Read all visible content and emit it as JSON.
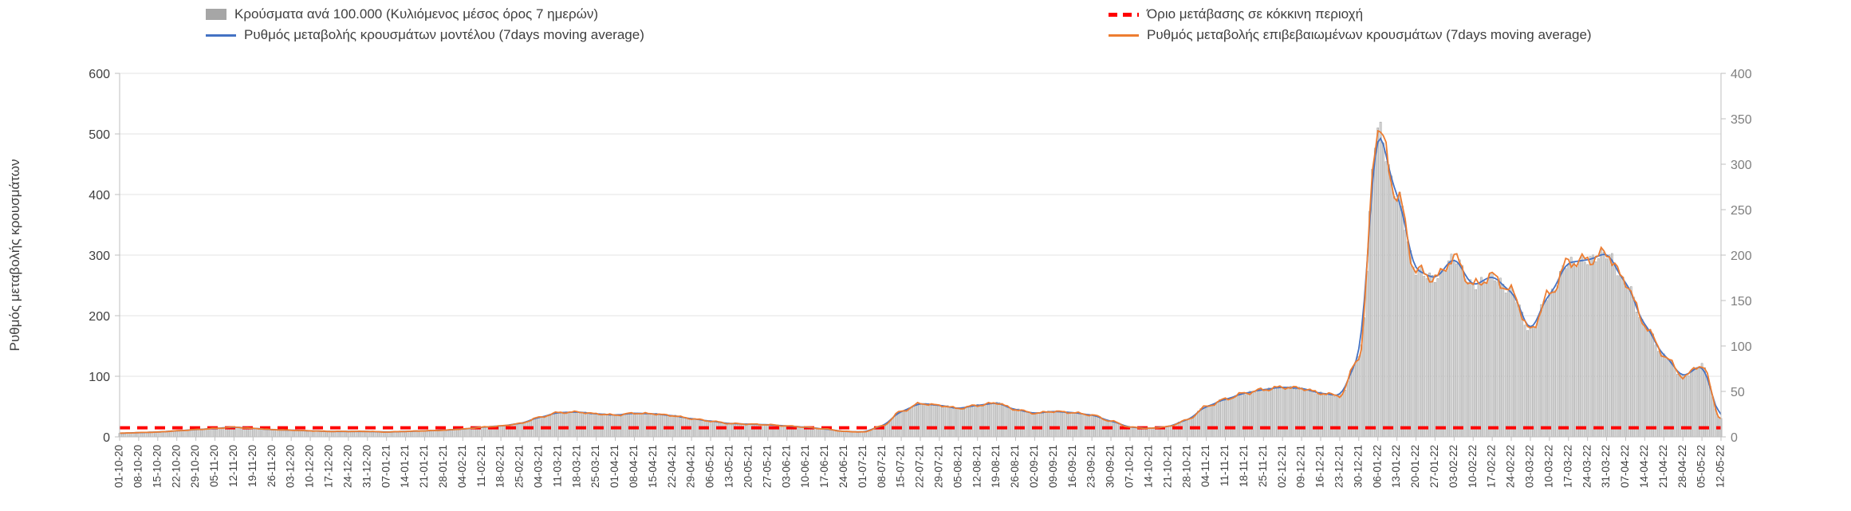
{
  "chart_data": {
    "type": "bar+line",
    "title": "",
    "x_resolution": "daily bars with weekly tick labels",
    "legend": {
      "position": "top",
      "items": [
        {
          "label": "Κρούσματα ανά 100.000 (Κυλιόμενος μέσος όρος 7 ημερών)",
          "swatch": "gray-bars"
        },
        {
          "label": "Όριο μετάβασης σε κόκκινη περιοχή",
          "swatch": "red-dashed-line"
        },
        {
          "label": "Ρυθμός μεταβολής κρουσμάτων μοντέλου (7days moving average)",
          "swatch": "blue-line"
        },
        {
          "label": "Ρυθμός μεταβολής επιβεβαιωμένων κρουσμάτων (7days moving average)",
          "swatch": "orange-line"
        }
      ]
    },
    "y_axis_left": {
      "title": "Ρυθμός μεταβολής κρουσμάτων",
      "min": 0,
      "max": 600,
      "step": 100
    },
    "y_axis_right": {
      "title": "",
      "min": 0,
      "max": 400,
      "step": 50
    },
    "grid": "horizontal-faint",
    "x_weekly_labels": [
      "01-10-20",
      "08-10-20",
      "15-10-20",
      "22-10-20",
      "29-10-20",
      "05-11-20",
      "12-11-20",
      "19-11-20",
      "26-11-20",
      "03-12-20",
      "10-12-20",
      "17-12-20",
      "24-12-20",
      "31-12-20",
      "07-01-21",
      "14-01-21",
      "21-01-21",
      "28-01-21",
      "04-02-21",
      "11-02-21",
      "18-02-21",
      "25-02-21",
      "04-03-21",
      "11-03-21",
      "18-03-21",
      "25-03-21",
      "01-04-21",
      "08-04-21",
      "15-04-21",
      "22-04-21",
      "29-04-21",
      "06-05-21",
      "13-05-21",
      "20-05-21",
      "27-05-21",
      "03-06-21",
      "10-06-21",
      "17-06-21",
      "24-06-21",
      "01-07-21",
      "08-07-21",
      "15-07-21",
      "22-07-21",
      "29-07-21",
      "05-08-21",
      "12-08-21",
      "19-08-21",
      "26-08-21",
      "02-09-21",
      "09-09-21",
      "16-09-21",
      "23-09-21",
      "30-09-21",
      "07-10-21",
      "14-10-21",
      "21-10-21",
      "28-10-21",
      "04-11-21",
      "11-11-21",
      "18-11-21",
      "25-11-21",
      "02-12-21",
      "09-12-21",
      "16-12-21",
      "23-12-21",
      "30-12-21",
      "06-01-22",
      "13-01-22",
      "20-01-22",
      "27-01-22",
      "03-02-22",
      "10-02-22",
      "17-02-22",
      "24-02-22",
      "03-03-22",
      "10-03-22",
      "17-03-22",
      "24-03-22",
      "31-03-22",
      "07-04-22",
      "14-04-22",
      "21-04-22",
      "28-04-22",
      "05-05-22",
      "12-05-22"
    ],
    "series": [
      {
        "name": "Κρούσματα ανά 100.000 (Κυλιόμενος μέσος όρος 7 ημερών)",
        "type": "bar",
        "axis": "right",
        "weekly_values": [
          4,
          5,
          5,
          7,
          8,
          9,
          11,
          9,
          8,
          7,
          7,
          6,
          6,
          6,
          5,
          6,
          7,
          7,
          9,
          11,
          12,
          15,
          21,
          27,
          27,
          25,
          24,
          26,
          25,
          23,
          20,
          17,
          15,
          14,
          13,
          12,
          11,
          9,
          6,
          5,
          12,
          28,
          37,
          35,
          31,
          35,
          37,
          30,
          26,
          28,
          27,
          24,
          17,
          11,
          9,
          11,
          19,
          33,
          41,
          48,
          52,
          55,
          53,
          48,
          45,
          87,
          340,
          267,
          183,
          175,
          197,
          167,
          177,
          160,
          117,
          157,
          192,
          195,
          202,
          170,
          123,
          90,
          67,
          79,
          20
        ]
      },
      {
        "name": "Ρυθμός μεταβολής κρουσμάτων μοντέλου (7days moving average)",
        "type": "line",
        "axis": "left",
        "weekly_values": [
          6,
          7,
          8,
          10,
          12,
          14,
          16,
          14,
          12,
          11,
          10,
          9,
          9,
          9,
          8,
          9,
          10,
          11,
          13,
          16,
          18,
          22,
          32,
          40,
          41,
          38,
          36,
          39,
          38,
          35,
          30,
          26,
          22,
          21,
          20,
          18,
          16,
          13,
          9,
          8,
          18,
          42,
          55,
          52,
          47,
          52,
          56,
          45,
          39,
          42,
          40,
          36,
          26,
          16,
          14,
          17,
          28,
          50,
          62,
          72,
          78,
          82,
          80,
          72,
          68,
          130,
          510,
          400,
          275,
          262,
          295,
          250,
          265,
          240,
          176,
          235,
          288,
          292,
          303,
          255,
          185,
          135,
          100,
          118,
          30
        ]
      },
      {
        "name": "Ρυθμός μεταβολής επιβεβαιωμένων κρουσμάτων (7days moving average)",
        "type": "line",
        "axis": "left",
        "weekly_values": [
          6,
          7,
          8,
          10,
          12,
          14,
          16,
          14,
          12,
          11,
          10,
          9,
          9,
          9,
          8,
          9,
          10,
          11,
          13,
          16,
          18,
          22,
          32,
          40,
          41,
          38,
          36,
          39,
          38,
          35,
          30,
          26,
          22,
          21,
          20,
          18,
          16,
          13,
          9,
          8,
          18,
          42,
          55,
          52,
          47,
          52,
          56,
          45,
          39,
          42,
          40,
          36,
          26,
          16,
          14,
          17,
          28,
          50,
          62,
          72,
          78,
          82,
          80,
          72,
          68,
          130,
          510,
          400,
          275,
          262,
          295,
          250,
          265,
          240,
          176,
          235,
          288,
          292,
          303,
          255,
          185,
          135,
          100,
          118,
          30
        ]
      }
    ],
    "threshold": {
      "label": "Όριο μετάβασης σε κόκκινη περιοχή",
      "axis": "left",
      "value": 15
    },
    "colors": {
      "bar_fill": "#d6d6d6",
      "bar_stroke": "#9a9a9a",
      "model": "#4472C4",
      "confirmed": "#ED7D31",
      "threshold": "#FF0000",
      "legend_bar_swatch": "#a6a6a6",
      "grid": "#e3e3e3",
      "spine": "#bfbfbf",
      "tick_text_left": "#3f3f3f",
      "tick_text_right": "#7f7f7f",
      "tick_text_x": "#404040"
    }
  }
}
